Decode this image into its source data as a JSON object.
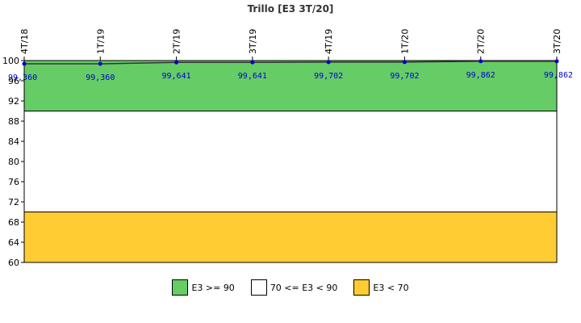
{
  "chart_data": {
    "type": "line",
    "title": "Trillo [E3 3T/20]",
    "xlabel": "",
    "ylabel": "",
    "categories": [
      "4T/18",
      "1T/19",
      "2T/19",
      "3T/19",
      "4T/19",
      "1T/20",
      "2T/20",
      "3T/20"
    ],
    "series": [
      {
        "values": [
          99.36,
          99.36,
          99.641,
          99.641,
          99.702,
          99.702,
          99.862,
          99.862
        ],
        "labels": [
          "99,360",
          "99,360",
          "99,641",
          "99,641",
          "99,702",
          "99,702",
          "99,862",
          "99,862"
        ],
        "color": "#0000cc"
      }
    ],
    "ylim": [
      60,
      100
    ],
    "yticks": [
      60,
      64,
      68,
      72,
      76,
      80,
      84,
      88,
      92,
      96,
      100
    ],
    "bands": [
      {
        "name": "E3 >= 90",
        "from": 90,
        "to": 100,
        "color": "#66cc66"
      },
      {
        "name": "70 <= E3 < 90",
        "from": 70,
        "to": 90,
        "color": "#ffffff"
      },
      {
        "name": "E3 < 70",
        "from": 60,
        "to": 70,
        "color": "#ffcc33"
      }
    ],
    "grid": false,
    "legend_position": "bottom"
  }
}
